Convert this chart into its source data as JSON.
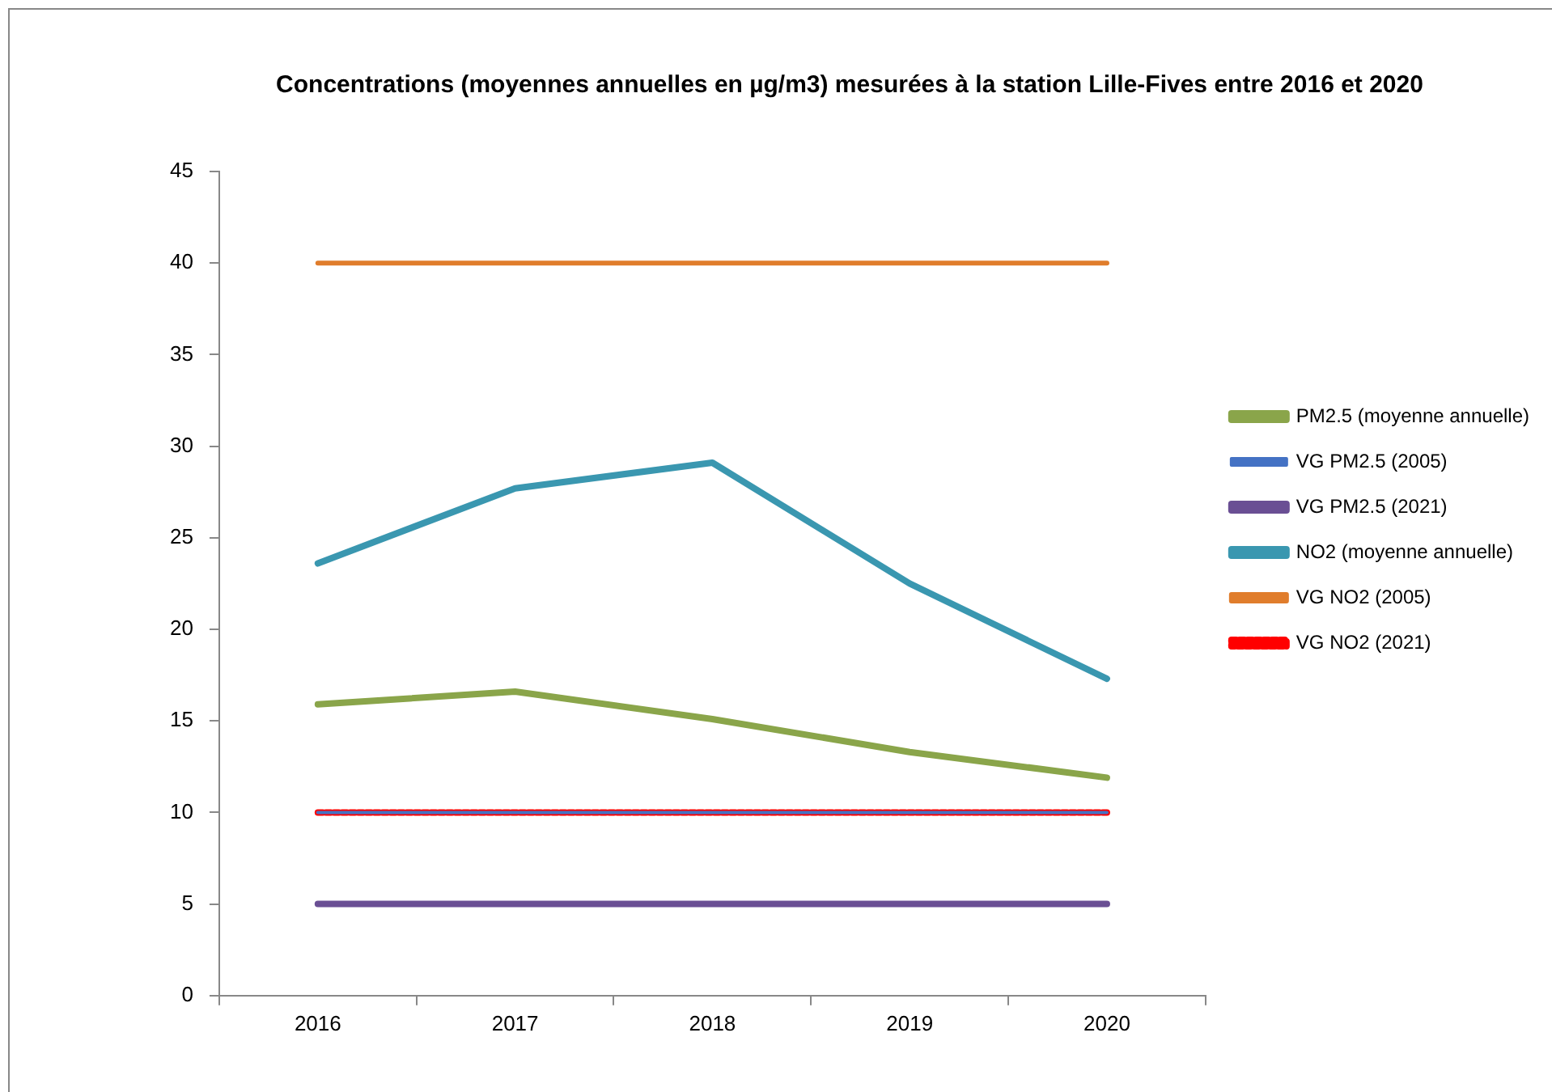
{
  "chart_data": {
    "type": "line",
    "title": "Concentrations (moyennes annuelles en µg/m3) mesurées à la station Lille-Fives entre 2016 et 2020",
    "categories": [
      "2016",
      "2017",
      "2018",
      "2019",
      "2020"
    ],
    "series": [
      {
        "name": "PM2.5 (moyenne annuelle)",
        "color": "#8aa54a",
        "values": [
          15.9,
          16.6,
          15.1,
          13.3,
          11.9
        ]
      },
      {
        "name": "VG PM2.5 (2005)",
        "color": "#4472c4",
        "values": [
          10,
          10,
          10,
          10,
          10
        ]
      },
      {
        "name": "VG PM2.5 (2021)",
        "color": "#6a4f94",
        "values": [
          5,
          5,
          5,
          5,
          5
        ]
      },
      {
        "name": "NO2 (moyenne annuelle)",
        "color": "#3a97b0",
        "values": [
          23.6,
          27.7,
          29.1,
          22.5,
          17.3
        ]
      },
      {
        "name": "VG NO2 (2005)",
        "color": "#e07d2c",
        "values": [
          40,
          40,
          40,
          40,
          40
        ]
      },
      {
        "name": "VG NO2 (2021)",
        "color": "#ff0000",
        "values": [
          10,
          10,
          10,
          10,
          10
        ],
        "line_style": "dotted"
      }
    ],
    "ylim": [
      0,
      45
    ],
    "yticks": [
      0,
      5,
      10,
      15,
      20,
      25,
      30,
      35,
      40,
      45
    ],
    "grid": false,
    "legend": "right",
    "marker": "none"
  }
}
